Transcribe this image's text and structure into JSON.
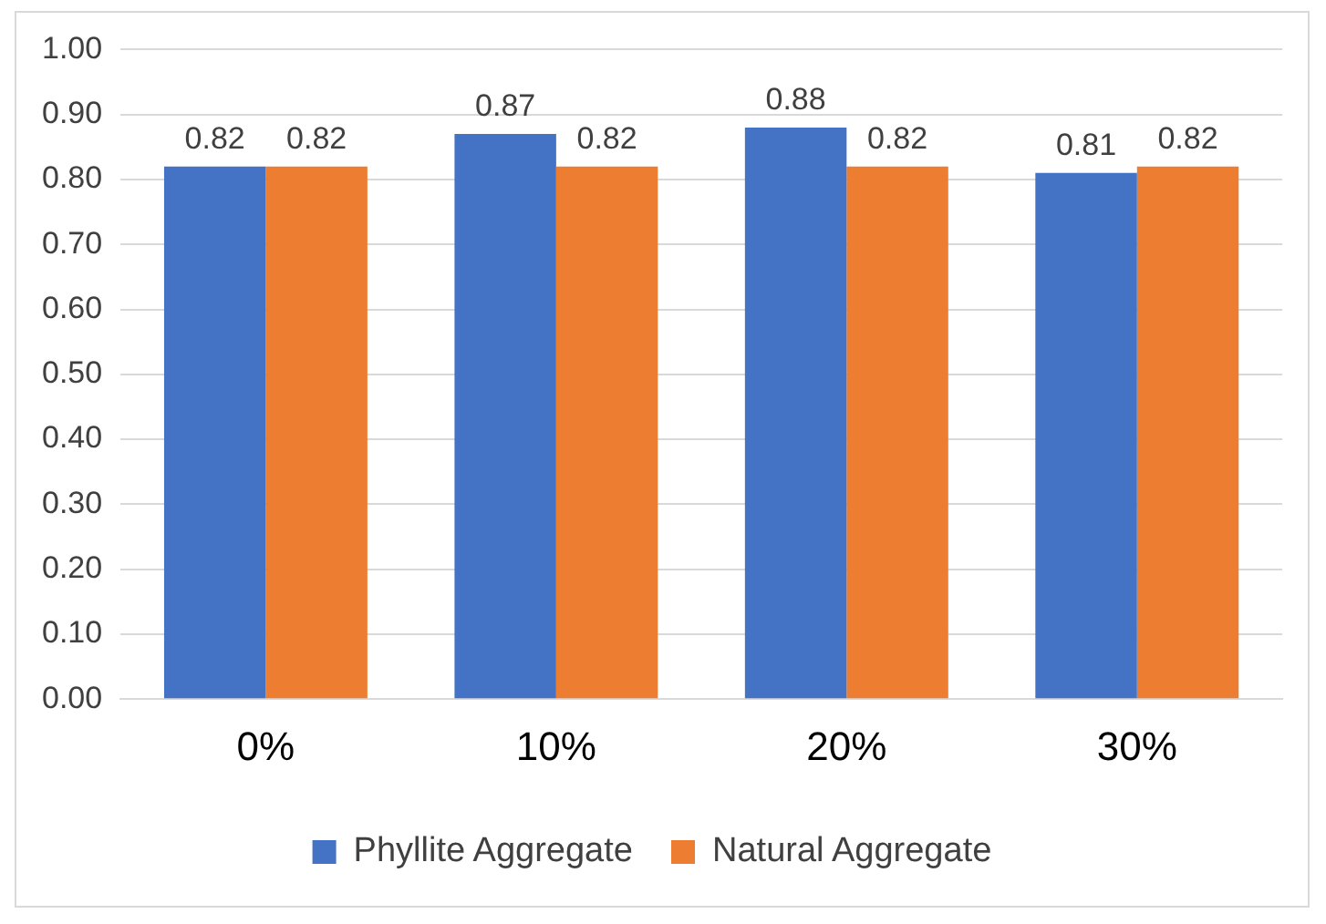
{
  "chart_data": {
    "type": "bar",
    "categories": [
      "0%",
      "10%",
      "20%",
      "30%"
    ],
    "series": [
      {
        "name": "Phyllite Aggregate",
        "color": "#4472c4",
        "values": [
          0.82,
          0.87,
          0.88,
          0.81
        ]
      },
      {
        "name": "Natural Aggregate",
        "color": "#ed7d31",
        "values": [
          0.82,
          0.82,
          0.82,
          0.82
        ]
      }
    ],
    "ylim": [
      0,
      1
    ],
    "yticks": [
      {
        "value": 0,
        "label": "0.00"
      },
      {
        "value": 0.1,
        "label": "0.10"
      },
      {
        "value": 0.2,
        "label": "0.20"
      },
      {
        "value": 0.3,
        "label": "0.30"
      },
      {
        "value": 0.4,
        "label": "0.40"
      },
      {
        "value": 0.5,
        "label": "0.50"
      },
      {
        "value": 0.6,
        "label": "0.60"
      },
      {
        "value": 0.7,
        "label": "0.70"
      },
      {
        "value": 0.8,
        "label": "0.80"
      },
      {
        "value": 0.9,
        "label": "0.90"
      },
      {
        "value": 1,
        "label": "1.00"
      }
    ],
    "grid": "y",
    "legend": "bottom",
    "data_labels": true
  }
}
